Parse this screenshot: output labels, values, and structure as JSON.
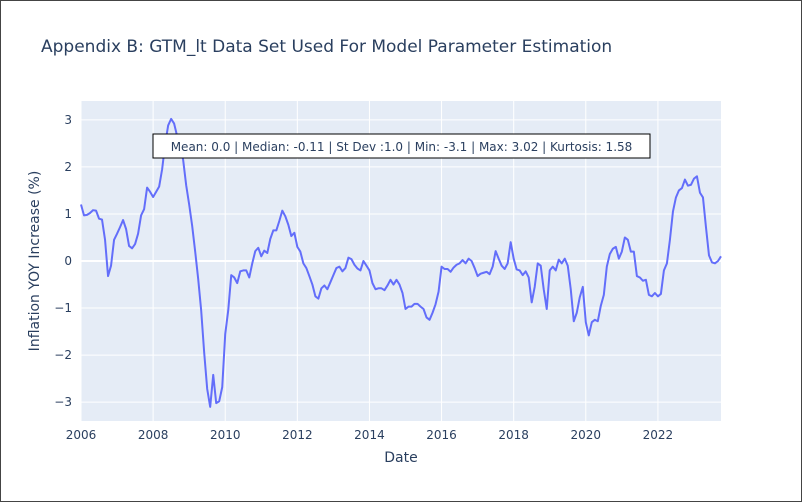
{
  "chart_data": {
    "type": "line",
    "title": "Appendix B: GTM_lt Data Set Used For Model Parameter Estimation",
    "xlabel": "Date",
    "ylabel": "Inflation YOY Increase (%)",
    "xlim": [
      2006.0,
      2023.75
    ],
    "ylim": [
      -3.4,
      3.4
    ],
    "xticks": [
      2006,
      2008,
      2010,
      2012,
      2014,
      2016,
      2018,
      2020,
      2022
    ],
    "xtick_labels": [
      "2006",
      "2008",
      "2010",
      "2012",
      "2014",
      "2016",
      "2018",
      "2020",
      "2022"
    ],
    "yticks": [
      -3,
      -2,
      -1,
      0,
      1,
      2,
      3
    ],
    "ytick_labels": [
      "−3",
      "−2",
      "−1",
      "0",
      "1",
      "2",
      "3"
    ],
    "grid": true,
    "line_color": "#636efa",
    "annotation": "Mean: 0.0 | Median: -0.11 | St Dev :1.0 | Min: -3.1 | Max: 3.02 | Kurtosis: 1.58",
    "series": [
      {
        "x": [
          2006.0,
          2006.083,
          2006.167,
          2006.25,
          2006.333,
          2006.417,
          2006.5,
          2006.583,
          2006.667,
          2006.75,
          2006.833,
          2006.917,
          2007.0,
          2007.083,
          2007.167,
          2007.25,
          2007.333,
          2007.417,
          2007.5,
          2007.583,
          2007.667,
          2007.75,
          2007.833,
          2007.917,
          2008.0,
          2008.083,
          2008.167,
          2008.25,
          2008.333,
          2008.417,
          2008.5,
          2008.583,
          2008.667,
          2008.75,
          2008.833,
          2008.917,
          2009.0,
          2009.083,
          2009.167,
          2009.25,
          2009.333,
          2009.417,
          2009.5,
          2009.583,
          2009.667,
          2009.75,
          2009.833,
          2009.917,
          2010.0,
          2010.083,
          2010.167,
          2010.25,
          2010.333,
          2010.417,
          2010.5,
          2010.583,
          2010.667,
          2010.75,
          2010.833,
          2010.917,
          2011.0,
          2011.083,
          2011.167,
          2011.25,
          2011.333,
          2011.417,
          2011.5,
          2011.583,
          2011.667,
          2011.75,
          2011.833,
          2011.917,
          2012.0,
          2012.083,
          2012.167,
          2012.25,
          2012.333,
          2012.417,
          2012.5,
          2012.583,
          2012.667,
          2012.75,
          2012.833,
          2012.917,
          2013.0,
          2013.083,
          2013.167,
          2013.25,
          2013.333,
          2013.417,
          2013.5,
          2013.583,
          2013.667,
          2013.75,
          2013.833,
          2013.917,
          2014.0,
          2014.083,
          2014.167,
          2014.25,
          2014.333,
          2014.417,
          2014.5,
          2014.583,
          2014.667,
          2014.75,
          2014.833,
          2014.917,
          2015.0,
          2015.083,
          2015.167,
          2015.25,
          2015.333,
          2015.417,
          2015.5,
          2015.583,
          2015.667,
          2015.75,
          2015.833,
          2015.917,
          2016.0,
          2016.083,
          2016.167,
          2016.25,
          2016.333,
          2016.417,
          2016.5,
          2016.583,
          2016.667,
          2016.75,
          2016.833,
          2016.917,
          2017.0,
          2017.083,
          2017.167,
          2017.25,
          2017.333,
          2017.417,
          2017.5,
          2017.583,
          2017.667,
          2017.75,
          2017.833,
          2017.917,
          2018.0,
          2018.083,
          2018.167,
          2018.25,
          2018.333,
          2018.417,
          2018.5,
          2018.583,
          2018.667,
          2018.75,
          2018.833,
          2018.917,
          2019.0,
          2019.083,
          2019.167,
          2019.25,
          2019.333,
          2019.417,
          2019.5,
          2019.583,
          2019.667,
          2019.75,
          2019.833,
          2019.917,
          2020.0,
          2020.083,
          2020.167,
          2020.25,
          2020.333,
          2020.417,
          2020.5,
          2020.583,
          2020.667,
          2020.75,
          2020.833,
          2020.917,
          2021.0,
          2021.083,
          2021.167,
          2021.25,
          2021.333,
          2021.417,
          2021.5,
          2021.583,
          2021.667,
          2021.75,
          2021.833,
          2021.917,
          2022.0,
          2022.083,
          2022.167,
          2022.25,
          2022.333,
          2022.417,
          2022.5,
          2022.583,
          2022.667,
          2022.75,
          2022.833,
          2022.917,
          2023.0,
          2023.083,
          2023.167,
          2023.25,
          2023.333,
          2023.417,
          2023.5,
          2023.583,
          2023.667,
          2023.75
        ],
        "y": [
          1.2,
          0.97,
          0.98,
          1.02,
          1.08,
          1.07,
          0.9,
          0.88,
          0.45,
          -0.32,
          -0.1,
          0.45,
          0.58,
          0.72,
          0.87,
          0.68,
          0.32,
          0.27,
          0.36,
          0.58,
          0.97,
          1.1,
          1.56,
          1.47,
          1.36,
          1.47,
          1.58,
          1.95,
          2.48,
          2.88,
          3.02,
          2.92,
          2.65,
          2.41,
          2.15,
          1.61,
          1.2,
          0.75,
          0.2,
          -0.38,
          -1.05,
          -1.95,
          -2.72,
          -3.1,
          -2.42,
          -3.02,
          -2.98,
          -2.68,
          -1.55,
          -1.05,
          -0.3,
          -0.35,
          -0.47,
          -0.22,
          -0.2,
          -0.2,
          -0.35,
          -0.05,
          0.21,
          0.28,
          0.1,
          0.22,
          0.17,
          0.47,
          0.65,
          0.65,
          0.85,
          1.07,
          0.95,
          0.77,
          0.53,
          0.6,
          0.3,
          0.2,
          -0.05,
          -0.15,
          -0.32,
          -0.5,
          -0.75,
          -0.8,
          -0.58,
          -0.52,
          -0.6,
          -0.45,
          -0.3,
          -0.15,
          -0.12,
          -0.22,
          -0.15,
          0.07,
          0.04,
          -0.08,
          -0.16,
          -0.2,
          0.0,
          -0.1,
          -0.2,
          -0.47,
          -0.6,
          -0.58,
          -0.58,
          -0.62,
          -0.52,
          -0.4,
          -0.5,
          -0.4,
          -0.5,
          -0.68,
          -1.02,
          -0.97,
          -0.97,
          -0.91,
          -0.91,
          -0.97,
          -1.02,
          -1.2,
          -1.25,
          -1.1,
          -0.92,
          -0.65,
          -0.12,
          -0.17,
          -0.17,
          -0.23,
          -0.14,
          -0.08,
          -0.05,
          0.02,
          -0.05,
          0.05,
          0.0,
          -0.15,
          -0.32,
          -0.27,
          -0.25,
          -0.23,
          -0.28,
          -0.12,
          0.21,
          0.05,
          -0.1,
          -0.17,
          -0.05,
          0.4,
          0.05,
          -0.18,
          -0.2,
          -0.3,
          -0.22,
          -0.35,
          -0.88,
          -0.55,
          -0.05,
          -0.1,
          -0.6,
          -1.02,
          -0.2,
          -0.12,
          -0.2,
          0.03,
          -0.05,
          0.05,
          -0.1,
          -0.6,
          -1.28,
          -1.1,
          -0.77,
          -0.55,
          -1.3,
          -1.58,
          -1.3,
          -1.25,
          -1.28,
          -0.95,
          -0.72,
          -0.12,
          0.15,
          0.26,
          0.3,
          0.05,
          0.2,
          0.5,
          0.45,
          0.2,
          0.2,
          -0.32,
          -0.35,
          -0.42,
          -0.4,
          -0.72,
          -0.75,
          -0.68,
          -0.75,
          -0.7,
          -0.2,
          -0.05,
          0.45,
          1.05,
          1.35,
          1.5,
          1.55,
          1.73,
          1.6,
          1.62,
          1.75,
          1.8,
          1.45,
          1.35,
          0.72,
          0.12,
          -0.03,
          -0.05,
          0.0,
          0.1
        ]
      }
    ]
  }
}
